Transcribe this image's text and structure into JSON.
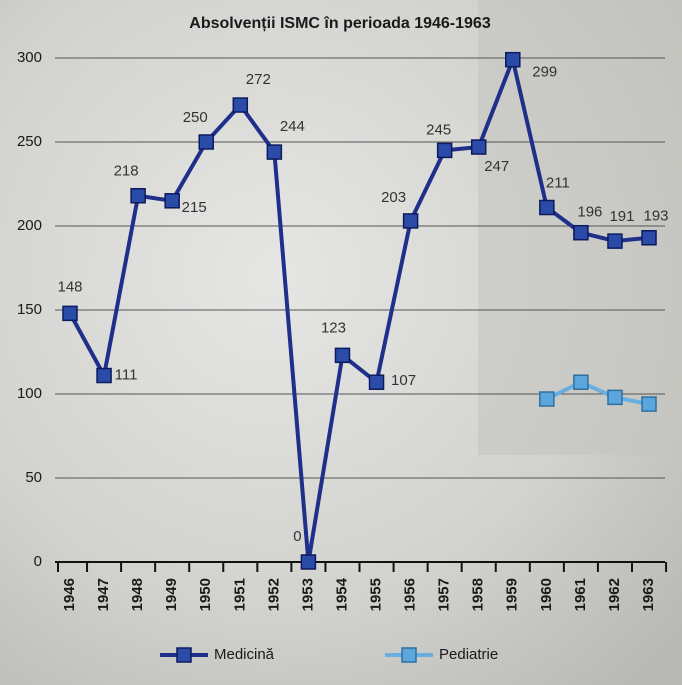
{
  "chart_data": {
    "type": "line",
    "title": "Absolvenții ISMC în perioada 1946-1963",
    "categories": [
      "1946",
      "1947",
      "1948",
      "1949",
      "1950",
      "1951",
      "1952",
      "1953",
      "1954",
      "1955",
      "1956",
      "1957",
      "1958",
      "1959",
      "1960",
      "1961",
      "1962",
      "1963"
    ],
    "series": [
      {
        "name": "Medicină",
        "color": "#1f2f8a",
        "values": [
          148,
          111,
          218,
          215,
          250,
          272,
          244,
          0,
          123,
          107,
          203,
          245,
          247,
          299,
          211,
          196,
          191,
          193
        ]
      },
      {
        "name": "Pediatrie",
        "color": "#6aaee0",
        "values": [
          null,
          null,
          null,
          null,
          null,
          null,
          null,
          null,
          null,
          null,
          null,
          null,
          null,
          null,
          97,
          107,
          98,
          94
        ]
      }
    ],
    "ylim": [
      0,
      300
    ],
    "yticks": [
      0,
      50,
      100,
      150,
      200,
      250,
      300
    ],
    "grid": true
  }
}
